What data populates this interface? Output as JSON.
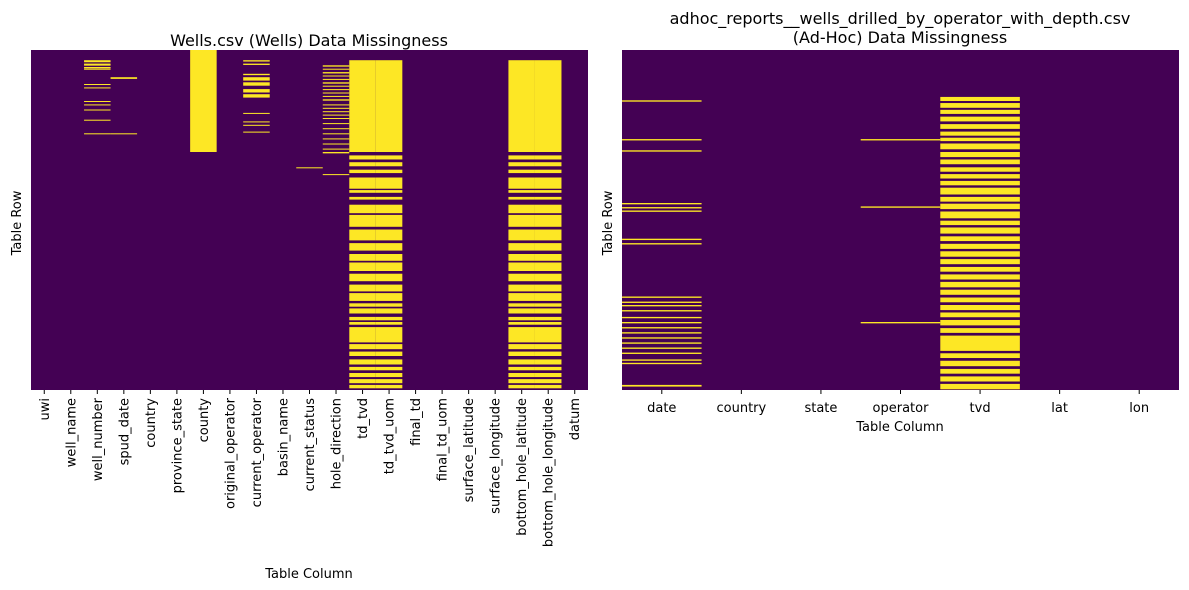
{
  "colors": {
    "present": "#440154",
    "missing": "#fde725"
  },
  "chart_data": [
    {
      "type": "heatmap",
      "title": "Wells.csv (Wells) Data Missingness",
      "xlabel": "Table Column",
      "ylabel": "Table Row",
      "grid": false,
      "legend": "none",
      "value_meaning": "1 = missing (yellow), 0 = present (purple); row ranges as fractions of table height",
      "columns": [
        "uwi",
        "well_name",
        "well_number",
        "spud_date",
        "country",
        "province_state",
        "county",
        "original_operator",
        "current_operator",
        "basin_name",
        "current_status",
        "hole_direction",
        "td_tvd",
        "td_tvd_uom",
        "final_td",
        "final_td_uom",
        "surface_latitude",
        "surface_longitude",
        "bottom_hole_latitude",
        "bottom_hole_longitude",
        "datum"
      ],
      "missing": [
        {
          "columns": [
            "well_number"
          ],
          "rows": [
            [
              0.03,
              0.036
            ],
            [
              0.04,
              0.046
            ],
            [
              0.05,
              0.054
            ],
            [
              0.055,
              0.058
            ],
            [
              0.1,
              0.103
            ],
            [
              0.11,
              0.113
            ],
            [
              0.15,
              0.153
            ],
            [
              0.16,
              0.163
            ],
            [
              0.175,
              0.178
            ],
            [
              0.205,
              0.208
            ],
            [
              0.245,
              0.248
            ]
          ]
        },
        {
          "columns": [
            "spud_date"
          ],
          "rows": [
            [
              0.08,
              0.085
            ],
            [
              0.245,
              0.248
            ]
          ]
        },
        {
          "columns": [
            "county"
          ],
          "rows": [
            [
              0.0,
              0.3
            ]
          ]
        },
        {
          "columns": [
            "current_operator"
          ],
          "rows": [
            [
              0.03,
              0.034
            ],
            [
              0.04,
              0.044
            ],
            [
              0.07,
              0.074
            ],
            [
              0.08,
              0.09
            ],
            [
              0.095,
              0.105
            ],
            [
              0.115,
              0.125
            ],
            [
              0.13,
              0.14
            ],
            [
              0.185,
              0.188
            ],
            [
              0.21,
              0.213
            ],
            [
              0.22,
              0.223
            ],
            [
              0.24,
              0.243
            ]
          ]
        },
        {
          "columns": [
            "current_status"
          ],
          "rows": [
            [
              0.345,
              0.348
            ]
          ]
        },
        {
          "columns": [
            "hole_direction"
          ],
          "rows": [
            [
              0.045,
              0.049
            ],
            [
              0.055,
              0.058
            ],
            [
              0.065,
              0.069
            ],
            [
              0.075,
              0.078
            ],
            [
              0.085,
              0.088
            ],
            [
              0.095,
              0.099
            ],
            [
              0.105,
              0.108
            ],
            [
              0.115,
              0.118
            ],
            [
              0.125,
              0.128
            ],
            [
              0.135,
              0.138
            ],
            [
              0.145,
              0.149
            ],
            [
              0.16,
              0.163
            ],
            [
              0.17,
              0.173
            ],
            [
              0.18,
              0.183
            ],
            [
              0.19,
              0.193
            ],
            [
              0.2,
              0.203
            ],
            [
              0.215,
              0.218
            ],
            [
              0.23,
              0.233
            ],
            [
              0.245,
              0.248
            ],
            [
              0.26,
              0.263
            ],
            [
              0.275,
              0.278
            ],
            [
              0.29,
              0.293
            ],
            [
              0.3,
              0.304
            ],
            [
              0.365,
              0.368
            ]
          ]
        },
        {
          "columns": [
            "td_tvd",
            "td_tvd_uom",
            "bottom_hole_latitude",
            "bottom_hole_longitude"
          ],
          "rows": [
            [
              0.03,
              0.3
            ],
            [
              0.31,
              0.322
            ],
            [
              0.33,
              0.342
            ],
            [
              0.352,
              0.362
            ],
            [
              0.375,
              0.408
            ],
            [
              0.412,
              0.42
            ],
            [
              0.432,
              0.44
            ],
            [
              0.455,
              0.48
            ],
            [
              0.485,
              0.52
            ],
            [
              0.528,
              0.56
            ],
            [
              0.568,
              0.59
            ],
            [
              0.6,
              0.62
            ],
            [
              0.625,
              0.65
            ],
            [
              0.658,
              0.68
            ],
            [
              0.69,
              0.71
            ],
            [
              0.715,
              0.738
            ],
            [
              0.745,
              0.755
            ],
            [
              0.76,
              0.775
            ],
            [
              0.785,
              0.795
            ],
            [
              0.8,
              0.808
            ],
            [
              0.815,
              0.86
            ],
            [
              0.865,
              0.88
            ],
            [
              0.887,
              0.9
            ],
            [
              0.91,
              0.925
            ],
            [
              0.932,
              0.942
            ],
            [
              0.95,
              0.962
            ],
            [
              0.968,
              0.98
            ],
            [
              0.985,
              0.995
            ]
          ]
        }
      ]
    },
    {
      "type": "heatmap",
      "title": "adhoc_reports__wells_drilled_by_operator_with_depth.csv\n(Ad-Hoc) Data Missingness",
      "xlabel": "Table Column",
      "ylabel": "Table Row",
      "grid": false,
      "legend": "none",
      "value_meaning": "1 = missing (yellow), 0 = present (purple); row ranges as fractions of table height",
      "columns": [
        "date",
        "country",
        "state",
        "operator",
        "tvd",
        "lat",
        "lon"
      ],
      "missing": [
        {
          "columns": [
            "date"
          ],
          "rows": [
            [
              0.148,
              0.152
            ],
            [
              0.262,
              0.266
            ],
            [
              0.295,
              0.299
            ],
            [
              0.45,
              0.454
            ],
            [
              0.462,
              0.466
            ],
            [
              0.472,
              0.476
            ],
            [
              0.555,
              0.559
            ],
            [
              0.568,
              0.572
            ],
            [
              0.725,
              0.729
            ],
            [
              0.74,
              0.744
            ],
            [
              0.75,
              0.754
            ],
            [
              0.765,
              0.769
            ],
            [
              0.785,
              0.789
            ],
            [
              0.8,
              0.804
            ],
            [
              0.815,
              0.819
            ],
            [
              0.83,
              0.834
            ],
            [
              0.845,
              0.849
            ],
            [
              0.86,
              0.864
            ],
            [
              0.875,
              0.879
            ],
            [
              0.89,
              0.894
            ],
            [
              0.91,
              0.914
            ],
            [
              0.92,
              0.924
            ],
            [
              0.985,
              0.99
            ]
          ]
        },
        {
          "columns": [
            "operator"
          ],
          "rows": [
            [
              0.262,
              0.266
            ],
            [
              0.46,
              0.464
            ],
            [
              0.8,
              0.804
            ]
          ]
        },
        {
          "columns": [
            "tvd"
          ],
          "rows": [
            [
              0.138,
              0.15
            ],
            [
              0.156,
              0.17
            ],
            [
              0.176,
              0.188
            ],
            [
              0.196,
              0.21
            ],
            [
              0.218,
              0.232
            ],
            [
              0.24,
              0.252
            ],
            [
              0.258,
              0.268
            ],
            [
              0.275,
              0.292
            ],
            [
              0.3,
              0.315
            ],
            [
              0.322,
              0.336
            ],
            [
              0.345,
              0.358
            ],
            [
              0.365,
              0.378
            ],
            [
              0.385,
              0.398
            ],
            [
              0.405,
              0.425
            ],
            [
              0.432,
              0.446
            ],
            [
              0.452,
              0.468
            ],
            [
              0.475,
              0.495
            ],
            [
              0.502,
              0.515
            ],
            [
              0.522,
              0.54
            ],
            [
              0.548,
              0.562
            ],
            [
              0.57,
              0.585
            ],
            [
              0.592,
              0.608
            ],
            [
              0.615,
              0.63
            ],
            [
              0.638,
              0.652
            ],
            [
              0.66,
              0.675
            ],
            [
              0.682,
              0.698
            ],
            [
              0.705,
              0.72
            ],
            [
              0.728,
              0.742
            ],
            [
              0.75,
              0.765
            ],
            [
              0.772,
              0.786
            ],
            [
              0.794,
              0.81
            ],
            [
              0.818,
              0.832
            ],
            [
              0.84,
              0.885
            ],
            [
              0.892,
              0.906
            ],
            [
              0.914,
              0.93
            ],
            [
              0.938,
              0.952
            ],
            [
              0.96,
              0.975
            ],
            [
              0.982,
              0.998
            ]
          ]
        }
      ]
    }
  ]
}
